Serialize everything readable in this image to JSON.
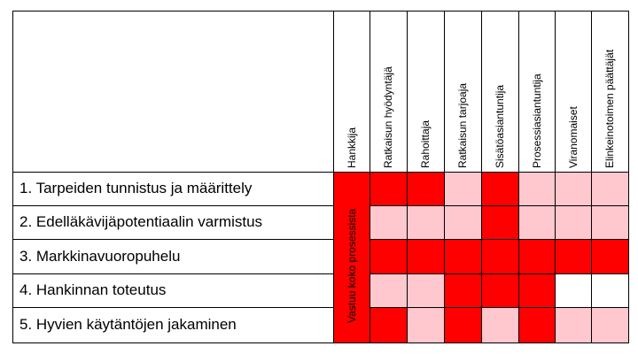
{
  "colors": {
    "strong": "#ff0000",
    "light": "#ffc7ce",
    "none": "#ffffff",
    "line": "#000000"
  },
  "columns": [
    "Hankkija",
    "Ratkaisun hyödyntäjä",
    "Rahoittaja",
    "Ratkaisun tarjoaja",
    "Sisätöasiantuntija",
    "Prosessiasiantuntija",
    "Viranomaiset",
    "Elinkeinotoimen päättäjät"
  ],
  "rows": [
    {
      "label": "1. Tarpeiden  tunnistus ja määrittely",
      "levels": [
        "strong",
        "strong",
        "light",
        "strong",
        "light",
        "light",
        "light"
      ]
    },
    {
      "label": "2. Edelläkävijäpotentiaalin varmistus",
      "levels": [
        "light",
        "light",
        "light",
        "strong",
        "light",
        "light",
        "light"
      ]
    },
    {
      "label": "3. Markkinavuoropuhelu",
      "levels": [
        "strong",
        "strong",
        "strong",
        "strong",
        "strong",
        "strong",
        "strong"
      ]
    },
    {
      "label": "4. Hankinnan toteutus",
      "levels": [
        "light",
        "light",
        "strong",
        "strong",
        "strong",
        "none",
        "none"
      ]
    },
    {
      "label": "5. Hyvien käytäntöjen jakaminen",
      "levels": [
        "strong",
        "light",
        "strong",
        "light",
        "strong",
        "light",
        "light"
      ]
    }
  ],
  "merged_cell": {
    "label": "Vastuu koko prosessista",
    "level": "strong"
  }
}
